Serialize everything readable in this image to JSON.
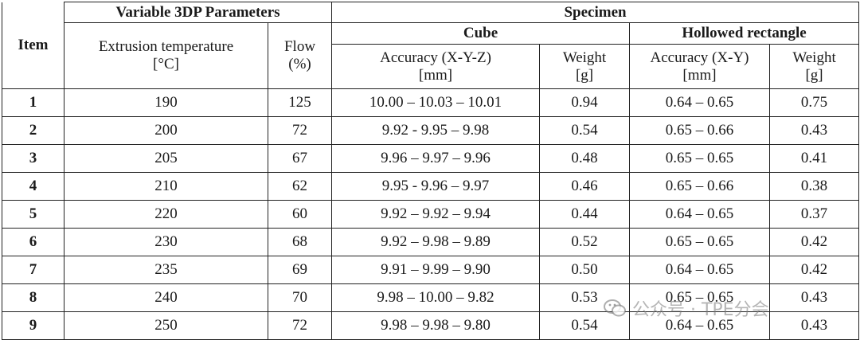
{
  "headers": {
    "item": "Item",
    "group_params": "Variable 3DP Parameters",
    "group_specimen": "Specimen",
    "extrusion_temp": "Extrusion temperature",
    "extrusion_temp_unit": "[°C]",
    "flow": "Flow",
    "flow_unit": "(%)",
    "cube": "Cube",
    "hollowed": "Hollowed rectangle",
    "cube_accuracy": "Accuracy (X-Y-Z)",
    "cube_accuracy_unit": "[mm]",
    "cube_weight": "Weight",
    "cube_weight_unit": "[g]",
    "hr_accuracy": "Accuracy (X-Y)",
    "hr_accuracy_unit": "[mm]",
    "hr_weight": "Weight",
    "hr_weight_unit": "[g]"
  },
  "rows": [
    {
      "item": "1",
      "temp": "190",
      "flow": "125",
      "cube_acc": "10.00 – 10.03 – 10.01",
      "cube_w": "0.94",
      "hr_acc": "0.64 – 0.65",
      "hr_w": "0.75"
    },
    {
      "item": "2",
      "temp": "200",
      "flow": "72",
      "cube_acc": "9.92 - 9.95 – 9.98",
      "cube_w": "0.54",
      "hr_acc": "0.65 – 0.66",
      "hr_w": "0.43"
    },
    {
      "item": "3",
      "temp": "205",
      "flow": "67",
      "cube_acc": "9.96 – 9.97 – 9.96",
      "cube_w": "0.48",
      "hr_acc": "0.65 – 0.65",
      "hr_w": "0.41"
    },
    {
      "item": "4",
      "temp": "210",
      "flow": "62",
      "cube_acc": "9.95 - 9.96 – 9.97",
      "cube_w": "0.46",
      "hr_acc": "0.65 – 0.66",
      "hr_w": "0.38"
    },
    {
      "item": "5",
      "temp": "220",
      "flow": "60",
      "cube_acc": "9.92 – 9.92 – 9.94",
      "cube_w": "0.44",
      "hr_acc": "0.64 – 0.65",
      "hr_w": "0.37"
    },
    {
      "item": "6",
      "temp": "230",
      "flow": "68",
      "cube_acc": "9.92 – 9.98 – 9.89",
      "cube_w": "0.52",
      "hr_acc": "0.65 – 0.65",
      "hr_w": "0.42"
    },
    {
      "item": "7",
      "temp": "235",
      "flow": "69",
      "cube_acc": "9.91 – 9.99 – 9.90",
      "cube_w": "0.50",
      "hr_acc": "0.64 – 0.65",
      "hr_w": "0.42"
    },
    {
      "item": "8",
      "temp": "240",
      "flow": "70",
      "cube_acc": "9.98 – 10.00 – 9.82",
      "cube_w": "0.53",
      "hr_acc": "0.65 – 0.65",
      "hr_w": "0.43"
    },
    {
      "item": "9",
      "temp": "250",
      "flow": "72",
      "cube_acc": "9.98 – 9.98 – 9.80",
      "cube_w": "0.54",
      "hr_acc": "0.64 – 0.65",
      "hr_w": "0.43"
    }
  ],
  "watermark": {
    "text": "公众号 · TPE分会",
    "icon": "wechat-icon"
  }
}
